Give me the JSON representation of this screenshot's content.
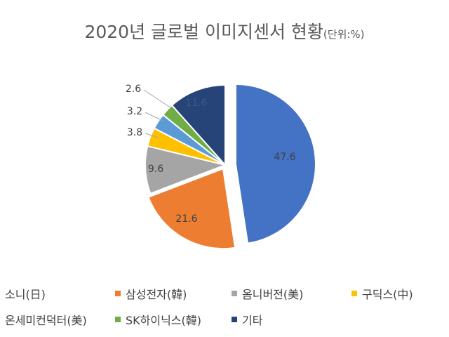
{
  "chart_data": {
    "type": "pie",
    "title": "2020년 글로벌 이미지센서 현황",
    "unit_note": "(단위:%)",
    "slices": [
      {
        "label": "소니(日)",
        "value": 47.6,
        "color": "#4472C4",
        "data_label": "47.6"
      },
      {
        "label": "삼성전자(韓)",
        "value": 21.6,
        "color": "#ED7D31",
        "data_label": "21.6"
      },
      {
        "label": "옴니버전(美)",
        "value": 9.6,
        "color": "#A5A5A5",
        "data_label": "9.6"
      },
      {
        "label": "구딕스(中)",
        "value": 3.8,
        "color": "#FFC000",
        "data_label": "3.8"
      },
      {
        "label": "온세미컨덕터(美)",
        "value": 3.2,
        "color": "#5B9BD5",
        "data_label": "3.2"
      },
      {
        "label": "SK하이닉스(韓)",
        "value": 2.6,
        "color": "#70AD47",
        "data_label": "2.6"
      },
      {
        "label": "기타",
        "value": 11.6,
        "color": "#264478",
        "data_label": "11.6"
      }
    ],
    "legend_position": "bottom"
  }
}
